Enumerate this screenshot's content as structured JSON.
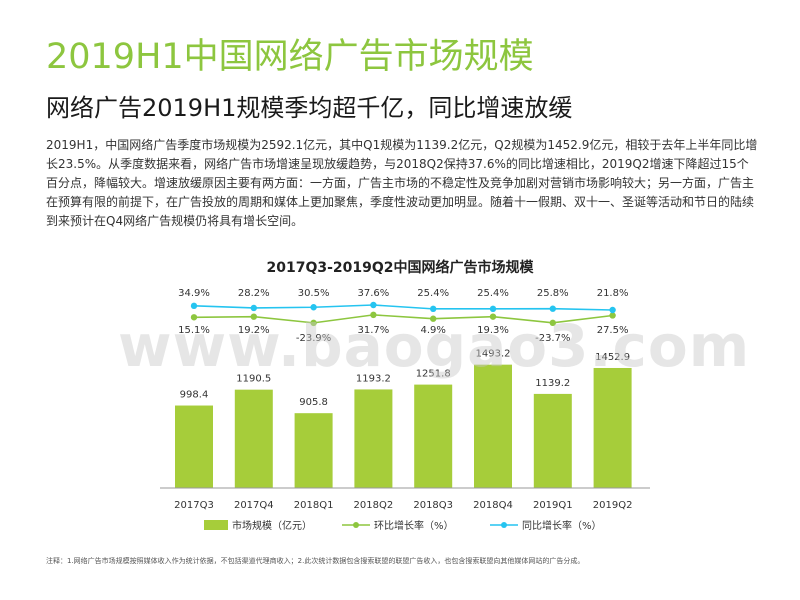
{
  "title": "2019H1中国网络广告市场规模",
  "subtitle": "网络广告2019H1规模季均超千亿，同比增速放缓",
  "body_text": "2019H1，中国网络广告季度市场规模为2592.1亿元，其中Q1规模为1139.2亿元，Q2规模为1452.9亿元，相较于去年上半年同比增长23.5%。从季度数据来看，网络广告市场增速呈现放缓趋势，与2018Q2保持37.6%的同比增速相比，2019Q2增速下降超过15个百分点，降幅较大。增速放缓原因主要有两方面：一方面，广告主市场的不稳定性及竞争加剧对营销市场影响较大；另一方面，广告主在预算有限的前提下，在广告投放的周期和媒体上更加聚焦，季度性波动更加明显。随着十一假期、双十一、圣诞等活动和节日的陆续到来预计在Q4网络广告规模仍将具有增长空间。",
  "footnote": "注释：1.网络广告市场规模按照媒体收入作为统计依据，不包括渠道代理商收入；2.此次统计数据包含搜索联盟的联盟广告收入，也包含搜索联盟向其他媒体网站的广告分成。",
  "watermark": "www.baogao3.com",
  "colors": {
    "bar": "#a6cd3a",
    "hb_line": "#8dc63f",
    "yoy_line": "#25c4f0",
    "title": "#8dc63f"
  },
  "chart_data": {
    "type": "bar",
    "title": "2017Q3-2019Q2中国网络广告市场规模",
    "categories": [
      "2017Q3",
      "2017Q4",
      "2018Q1",
      "2018Q2",
      "2018Q3",
      "2018Q4",
      "2019Q1",
      "2019Q2"
    ],
    "series": [
      {
        "name": "市场规模（亿元）",
        "kind": "bar",
        "values": [
          998.4,
          1190.5,
          905.8,
          1193.2,
          1251.8,
          1493.2,
          1139.2,
          1452.9
        ],
        "labels": [
          "998.4",
          "1190.5",
          "905.8",
          "1193.2",
          "1251.8",
          "1493.2",
          "1139.2",
          "1452.9"
        ]
      },
      {
        "name": "环比增长率（%）",
        "kind": "line",
        "values": [
          15.1,
          19.2,
          -23.9,
          31.7,
          4.9,
          19.3,
          -23.7,
          27.5
        ],
        "labels": [
          "15.1%",
          "19.2%",
          "-23.9%",
          "31.7%",
          "4.9%",
          "19.3%",
          "-23.7%",
          "27.5%"
        ]
      },
      {
        "name": "同比增长率（%）",
        "kind": "line",
        "values": [
          34.9,
          28.2,
          30.5,
          37.6,
          25.4,
          25.4,
          25.8,
          21.8
        ],
        "labels": [
          "34.9%",
          "28.2%",
          "30.5%",
          "37.6%",
          "25.4%",
          "25.4%",
          "25.8%",
          "21.8%"
        ]
      }
    ],
    "legend_position": "bottom",
    "grid": false
  }
}
